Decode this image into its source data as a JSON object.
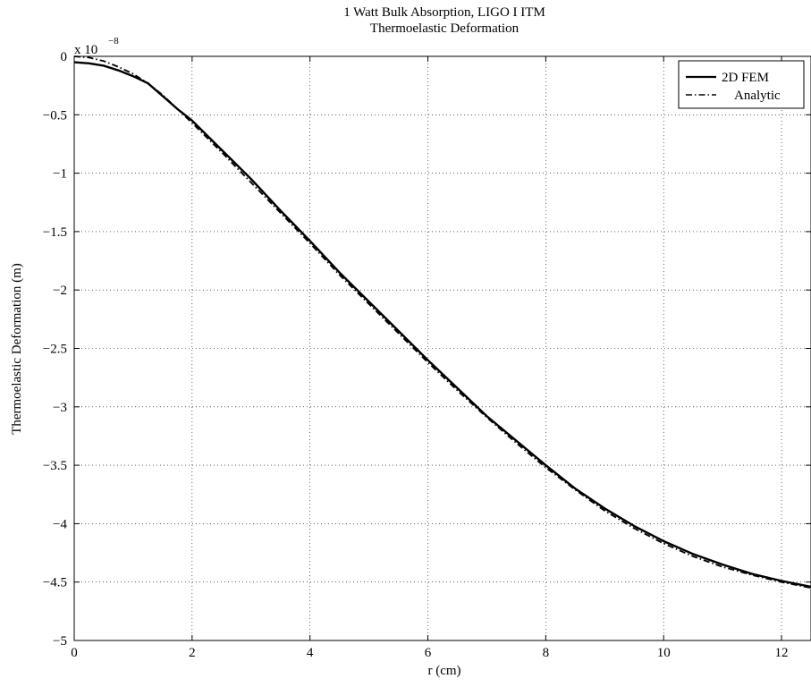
{
  "chart_data": {
    "type": "line",
    "title": "1 Watt Bulk Absorption, LIGO I ITM",
    "subtitle": "Thermoelastic Deformation",
    "xlabel": "r (cm)",
    "ylabel": "Thermoelastic Deformation (m)",
    "y_scale_label": "x 10",
    "y_scale_exponent": "−8",
    "xlim": [
      0,
      12.5
    ],
    "ylim": [
      -5,
      0
    ],
    "x_ticks": [
      0,
      2,
      4,
      6,
      8,
      10,
      12
    ],
    "x_tick_labels": [
      "0",
      "2",
      "4",
      "6",
      "8",
      "10",
      "12"
    ],
    "y_ticks": [
      0,
      -0.5,
      -1,
      -1.5,
      -2,
      -2.5,
      -3,
      -3.5,
      -4,
      -4.5,
      -5
    ],
    "y_tick_labels": [
      "0",
      "−0.5",
      "−1",
      "−1.5",
      "−2",
      "−2.5",
      "−3",
      "−3.5",
      "−4",
      "−4.5",
      "−5"
    ],
    "grid": true,
    "legend_position": "top-right",
    "series": [
      {
        "name": "2D FEM",
        "style": "solid",
        "color": "#000000",
        "x": [
          0,
          0.25,
          0.5,
          0.75,
          1.0,
          1.25,
          1.5,
          1.75,
          2.0,
          2.5,
          3.0,
          3.5,
          4.0,
          4.5,
          5.0,
          5.5,
          6.0,
          6.5,
          7.0,
          7.5,
          8.0,
          8.5,
          9.0,
          9.5,
          10.0,
          10.5,
          11.0,
          11.5,
          12.0,
          12.5
        ],
        "y": [
          -0.05,
          -0.06,
          -0.08,
          -0.12,
          -0.17,
          -0.23,
          -0.34,
          -0.45,
          -0.55,
          -0.8,
          -1.05,
          -1.32,
          -1.58,
          -1.85,
          -2.1,
          -2.35,
          -2.6,
          -2.84,
          -3.08,
          -3.29,
          -3.5,
          -3.7,
          -3.87,
          -4.02,
          -4.15,
          -4.26,
          -4.35,
          -4.43,
          -4.49,
          -4.54
        ]
      },
      {
        "name": "Analytic",
        "style": "dashdot",
        "color": "#000000",
        "x": [
          0,
          0.25,
          0.5,
          0.75,
          1.0,
          1.25,
          1.5,
          1.75,
          2.0,
          2.5,
          3.0,
          3.5,
          4.0,
          4.5,
          5.0,
          5.5,
          6.0,
          6.5,
          7.0,
          7.5,
          8.0,
          8.5,
          9.0,
          9.5,
          10.0,
          10.5,
          11.0,
          11.5,
          12.0,
          12.5
        ],
        "y": [
          0.0,
          -0.01,
          -0.04,
          -0.09,
          -0.15,
          -0.23,
          -0.33,
          -0.45,
          -0.57,
          -0.82,
          -1.08,
          -1.34,
          -1.6,
          -1.87,
          -2.12,
          -2.37,
          -2.62,
          -2.86,
          -3.09,
          -3.31,
          -3.52,
          -3.71,
          -3.89,
          -4.04,
          -4.17,
          -4.28,
          -4.37,
          -4.44,
          -4.5,
          -4.55
        ]
      }
    ]
  }
}
